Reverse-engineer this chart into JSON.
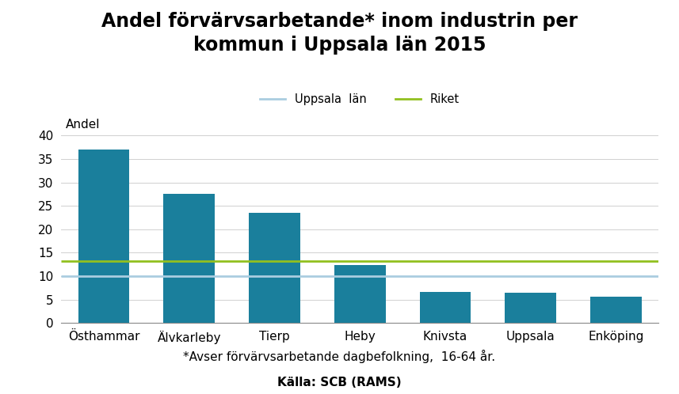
{
  "title": "Andel förvärvsarbetande* inom industrin per\nkommun i Uppsala län 2015",
  "categories": [
    "Östhammar",
    "Älvkarleby",
    "Tierp",
    "Heby",
    "Knivsta",
    "Uppsala",
    "Enköping"
  ],
  "values": [
    37.0,
    27.5,
    23.5,
    12.3,
    6.6,
    6.4,
    5.7
  ],
  "bar_color": "#1a7f9c",
  "ylabel_text": "Andel",
  "ylim": [
    0,
    42
  ],
  "yticks": [
    0,
    5,
    10,
    15,
    20,
    25,
    30,
    35,
    40
  ],
  "uppsala_lan_value": 10.0,
  "riket_value": 13.2,
  "uppsala_lan_color": "#aacde0",
  "riket_color": "#92c01f",
  "legend_uppsala": "Uppsala  län",
  "legend_riket": "Riket",
  "footnote1": "*Avser förvärvsarbetande dagbefolkning,  16-64 år.",
  "footnote2": "Källa: SCB (RAMS)",
  "background_color": "#ffffff",
  "title_fontsize": 17,
  "tick_fontsize": 11,
  "footnote_fontsize": 11,
  "andel_fontsize": 11
}
